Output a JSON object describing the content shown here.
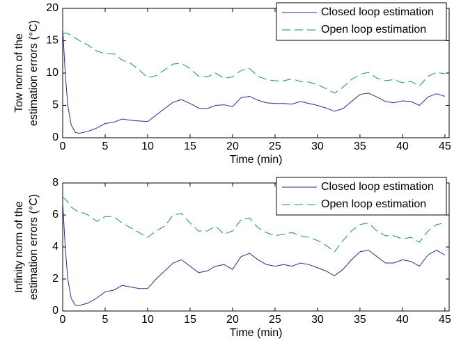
{
  "chart_data": [
    {
      "type": "line",
      "ylabel": [
        "Tow norm of the",
        "estimation errors (°C)"
      ],
      "xlabel": "Time (min)",
      "x": [
        0,
        0.3,
        0.6,
        1,
        1.5,
        2,
        3,
        4,
        5,
        6,
        7,
        8,
        9,
        10,
        11,
        12,
        13,
        14,
        15,
        16,
        17,
        18,
        19,
        20,
        21,
        22,
        23,
        24,
        25,
        26,
        27,
        28,
        29,
        30,
        31,
        32,
        33,
        34,
        35,
        36,
        37,
        38,
        39,
        40,
        41,
        42,
        43,
        44,
        45
      ],
      "xlim": [
        0,
        45.5
      ],
      "ylim": [
        0,
        20
      ],
      "xticks": [
        0,
        5,
        10,
        15,
        20,
        25,
        30,
        35,
        40,
        45
      ],
      "yticks": [
        0,
        5,
        10,
        15,
        20
      ],
      "legend": "upper right",
      "series": [
        {
          "name": "Closed loop estimation",
          "color": "#2b2b8f",
          "style": "solid",
          "values": [
            17,
            10,
            5,
            2,
            0.8,
            0.7,
            1.0,
            1.5,
            2.2,
            2.4,
            2.9,
            2.7,
            2.6,
            2.5,
            3.5,
            4.5,
            5.5,
            5.9,
            5.3,
            4.6,
            4.5,
            5.0,
            5.1,
            4.8,
            6.2,
            6.4,
            5.8,
            5.4,
            5.3,
            5.3,
            5.2,
            5.6,
            5.3,
            5.0,
            4.6,
            4.1,
            4.5,
            5.6,
            6.7,
            6.9,
            6.3,
            5.6,
            5.4,
            5.7,
            5.6,
            5.0,
            6.3,
            6.8,
            6.4
          ]
        },
        {
          "name": "Open loop estimation",
          "color": "#119944",
          "style": "dashed",
          "values": [
            16,
            16.2,
            16.1,
            15.8,
            15.4,
            15,
            14.3,
            13.4,
            13,
            13,
            12,
            11.5,
            10.5,
            9.3,
            9.6,
            10.5,
            11.4,
            11.5,
            10.7,
            9.5,
            9.4,
            10,
            9.2,
            9.4,
            10.4,
            10.7,
            9.5,
            9,
            8.8,
            8.8,
            9.1,
            8.7,
            8.6,
            8.2,
            7.6,
            6.9,
            7.8,
            9,
            9.8,
            10.1,
            9.2,
            8.8,
            9.0,
            8.5,
            8.7,
            8.0,
            9.5,
            10.1,
            9.9
          ]
        }
      ]
    },
    {
      "type": "line",
      "ylabel": [
        "Infinity norm of the",
        "estimation errors (°C)"
      ],
      "xlabel": "Time (min)",
      "x": [
        0,
        0.3,
        0.6,
        1,
        1.5,
        2,
        3,
        4,
        5,
        6,
        7,
        8,
        9,
        10,
        11,
        12,
        13,
        14,
        15,
        16,
        17,
        18,
        19,
        20,
        21,
        22,
        23,
        24,
        25,
        26,
        27,
        28,
        29,
        30,
        31,
        32,
        33,
        34,
        35,
        36,
        37,
        38,
        39,
        40,
        41,
        42,
        43,
        44,
        45
      ],
      "xlim": [
        0,
        45.5
      ],
      "ylim": [
        0,
        8
      ],
      "xticks": [
        0,
        5,
        10,
        15,
        20,
        25,
        30,
        35,
        40,
        45
      ],
      "yticks": [
        0,
        2,
        4,
        6,
        8
      ],
      "legend": "upper right",
      "series": [
        {
          "name": "Closed loop estimation",
          "color": "#2b2b8f",
          "style": "solid",
          "values": [
            6.8,
            4,
            2,
            0.8,
            0.35,
            0.35,
            0.5,
            0.8,
            1.2,
            1.3,
            1.6,
            1.5,
            1.4,
            1.4,
            2.0,
            2.5,
            3.0,
            3.2,
            2.8,
            2.4,
            2.5,
            2.8,
            2.9,
            2.6,
            3.4,
            3.6,
            3.2,
            2.9,
            2.8,
            2.9,
            2.8,
            3.0,
            2.9,
            2.7,
            2.5,
            2.2,
            2.6,
            3.2,
            3.7,
            3.8,
            3.4,
            3.0,
            3.0,
            3.2,
            3.1,
            2.8,
            3.5,
            3.8,
            3.5
          ]
        },
        {
          "name": "Open loop estimation",
          "color": "#119944",
          "style": "dashed",
          "values": [
            7.1,
            7.0,
            6.8,
            6.5,
            6.3,
            6.2,
            6.0,
            5.6,
            5.9,
            5.9,
            5.5,
            5.2,
            4.9,
            4.6,
            5.0,
            5.3,
            6.0,
            6.1,
            5.5,
            5.0,
            5.0,
            5.3,
            4.8,
            5.0,
            5.7,
            5.8,
            5.2,
            4.9,
            4.7,
            4.8,
            4.9,
            4.7,
            4.6,
            4.4,
            4.1,
            3.7,
            4.4,
            5.0,
            5.4,
            5.5,
            5.0,
            4.7,
            4.7,
            4.5,
            4.6,
            4.3,
            5.0,
            5.4,
            5.5
          ]
        }
      ]
    }
  ]
}
